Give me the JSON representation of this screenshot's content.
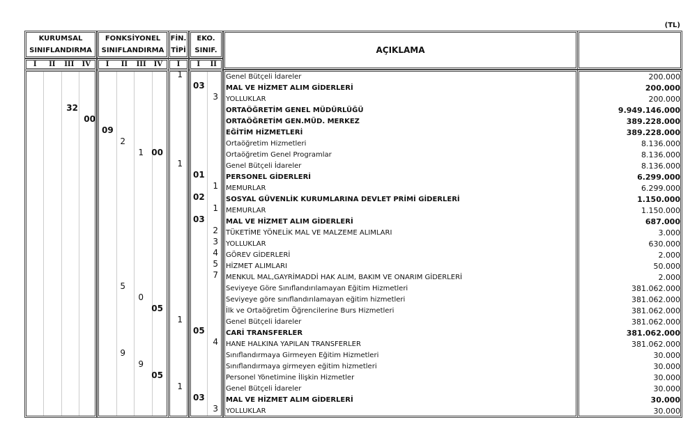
{
  "unit": "(TL)",
  "headers": {
    "kurumsal": [
      "KURUMSAL",
      "SINIFLANDIRMA"
    ],
    "fonksiyonel": [
      "FONKSİYONEL",
      "SINIFLANDIRMA"
    ],
    "fin": [
      "FİN.",
      "TİPİ"
    ],
    "eko": [
      "EKO.",
      "SINIF."
    ],
    "aciklama": "AÇIKLAMA",
    "amount": ""
  },
  "roman": {
    "kurumsal": [
      "I",
      "II",
      "III",
      "IV"
    ],
    "fonksiyonel": [
      "I",
      "II",
      "III",
      "IV"
    ],
    "fin": [
      "I"
    ],
    "eko": [
      "I",
      "II"
    ]
  },
  "rows": [
    {
      "fin": "1",
      "desc": "Genel Bütçeli İdareler",
      "amount": "200.000"
    },
    {
      "e1": "03",
      "desc": "MAL VE HİZMET ALIM GİDERLERİ",
      "amount": "200.000",
      "bold": true
    },
    {
      "e2": "3",
      "desc": "YOLLUKLAR",
      "amount": "200.000"
    },
    {
      "k3": "32",
      "desc": "ORTAÖĞRETİM GENEL MÜDÜRLÜĞÜ",
      "amount": "9.949.146.000",
      "bold": true
    },
    {
      "k4": "00",
      "desc": "ORTAÖĞRETİM GEN.MÜD. MERKEZ",
      "amount": "389.228.000",
      "bold": true
    },
    {
      "f1": "09",
      "desc": "EĞİTİM HİZMETLERİ",
      "amount": "389.228.000",
      "bold": true
    },
    {
      "f2": "2",
      "desc": "Ortaöğretim Hizmetleri",
      "amount": "8.136.000"
    },
    {
      "f3": "1",
      "f4": "00",
      "desc": "Ortaöğretim Genel Programlar",
      "amount": "8.136.000"
    },
    {
      "fin": "1",
      "desc": "Genel Bütçeli İdareler",
      "amount": "8.136.000"
    },
    {
      "e1": "01",
      "desc": "PERSONEL GİDERLERİ",
      "amount": "6.299.000",
      "bold": true
    },
    {
      "e2": "1",
      "desc": "MEMURLAR",
      "amount": "6.299.000"
    },
    {
      "e1": "02",
      "desc": "SOSYAL GÜVENLİK KURUMLARINA DEVLET PRİMİ GİDERLERİ",
      "amount": "1.150.000",
      "bold": true
    },
    {
      "e2": "1",
      "desc": "MEMURLAR",
      "amount": "1.150.000"
    },
    {
      "e1": "03",
      "desc": "MAL VE HİZMET ALIM GİDERLERİ",
      "amount": "687.000",
      "bold": true
    },
    {
      "e2": "2",
      "desc": "TÜKETİME YÖNELİK MAL VE MALZEME ALIMLARI",
      "amount": "3.000"
    },
    {
      "e2": "3",
      "desc": "YOLLUKLAR",
      "amount": "630.000"
    },
    {
      "e2": "4",
      "desc": "GÖREV GİDERLERİ",
      "amount": "2.000"
    },
    {
      "e2": "5",
      "desc": "HİZMET ALIMLARI",
      "amount": "50.000"
    },
    {
      "e2": "7",
      "desc": "MENKUL MAL,GAYRİMADDİ HAK ALIM, BAKIM VE ONARIM GİDERLERİ",
      "amount": "2.000"
    },
    {
      "f2": "5",
      "desc": "Seviyeye Göre Sınıflandırılamayan Eğitim Hizmetleri",
      "amount": "381.062.000"
    },
    {
      "f3": "0",
      "desc": "Seviyeye göre sınıflandırılamayan eğitim hizmetleri",
      "amount": "381.062.000"
    },
    {
      "f4": "05",
      "desc": "İlk ve Ortaöğretim Öğrencilerine Burs Hizmetleri",
      "amount": "381.062.000"
    },
    {
      "fin": "1",
      "desc": "Genel Bütçeli İdareler",
      "amount": "381.062.000"
    },
    {
      "e1": "05",
      "desc": "CARİ TRANSFERLER",
      "amount": "381.062.000",
      "bold": true
    },
    {
      "e2": "4",
      "desc": "HANE HALKINA YAPILAN TRANSFERLER",
      "amount": "381.062.000"
    },
    {
      "f2": "9",
      "desc": "Sınıflandırmaya Girmeyen Eğitim Hizmetleri",
      "amount": "30.000"
    },
    {
      "f3": "9",
      "desc": "Sınıflandırmaya girmeyen eğitim hizmetleri",
      "amount": "30.000"
    },
    {
      "f4": "05",
      "desc": "Personel Yönetimine İlişkin Hizmetler",
      "amount": "30.000"
    },
    {
      "fin": "1",
      "desc": "Genel Bütçeli İdareler",
      "amount": "30.000"
    },
    {
      "e1": "03",
      "desc": "MAL VE HİZMET ALIM GİDERLERİ",
      "amount": "30.000",
      "bold": true
    },
    {
      "e2": "3",
      "desc": "YOLLUKLAR",
      "amount": "30.000"
    }
  ]
}
